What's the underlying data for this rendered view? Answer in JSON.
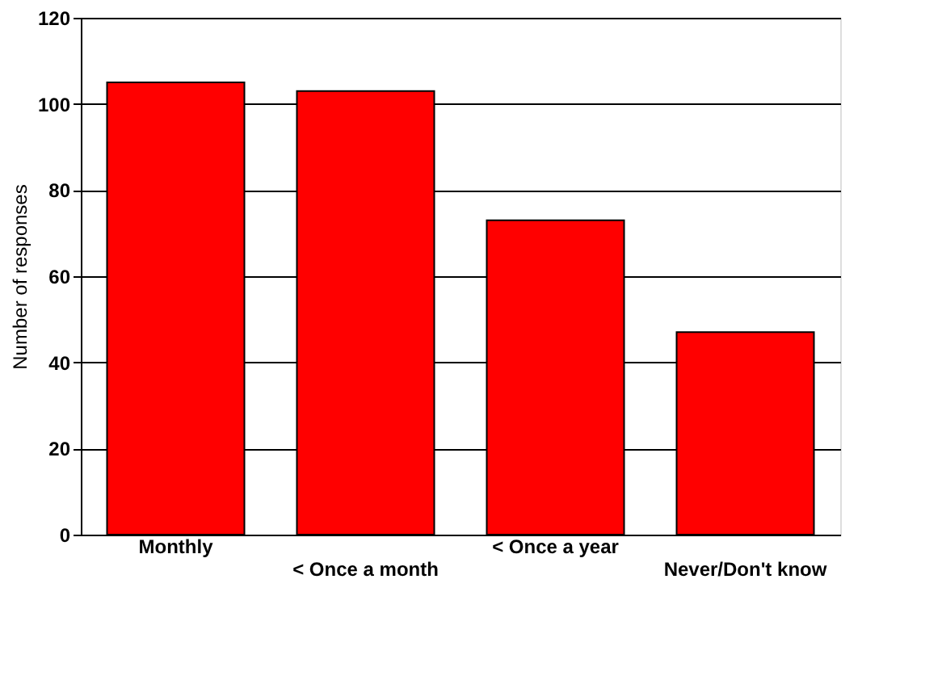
{
  "chart_data": {
    "type": "bar",
    "ylabel": "Number of responses",
    "categories": [
      "Monthly",
      "< Once a month",
      "< Once a year",
      "Never/Don't know"
    ],
    "values": [
      105,
      103,
      73,
      47
    ],
    "color": "#ff0000",
    "ylim": [
      0,
      120
    ],
    "yticks": [
      0,
      20,
      40,
      60,
      80,
      100,
      120
    ],
    "grid": "y"
  }
}
